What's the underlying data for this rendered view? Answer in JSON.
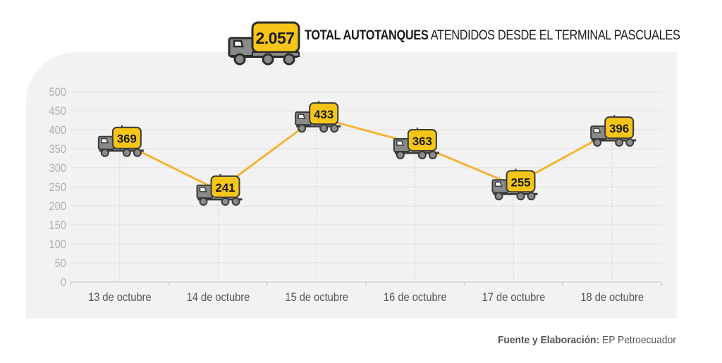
{
  "header": {
    "total": "2.057",
    "title_bold": "TOTAL AUTOTANQUES",
    "title_rest": "ATENDIDOS DESDE EL TERMINAL PASCUALES"
  },
  "source": {
    "label": "Fuente y Elaboración:",
    "value": "EP Petroecuador"
  },
  "colors": {
    "line": "#f5b335",
    "badge": "#f5c518",
    "truck_body": "#8a8a8a",
    "truck_dark": "#3a3a3a",
    "panel": "#f2f2f2",
    "grid": "#e0e0e0"
  },
  "icons": [
    "tanker-truck-icon"
  ],
  "chart_data": {
    "type": "line",
    "categories": [
      "13 de octubre",
      "14 de octubre",
      "15 de octubre",
      "16 de octubre",
      "17 de octubre",
      "18 de octubre"
    ],
    "values": [
      369,
      241,
      433,
      363,
      255,
      396
    ],
    "ylim": [
      0,
      500
    ],
    "yticks": [
      0,
      50,
      100,
      150,
      200,
      250,
      300,
      350,
      400,
      450,
      500
    ],
    "grid": true,
    "data_labels": true
  }
}
